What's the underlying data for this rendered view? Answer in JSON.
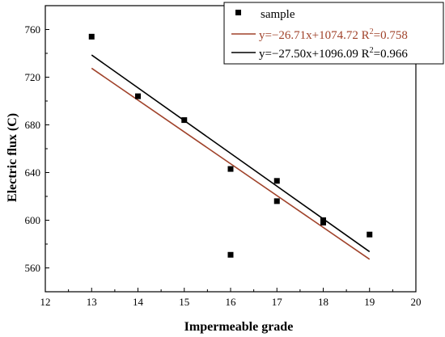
{
  "chart_data": {
    "type": "scatter",
    "title": "",
    "xlabel": "Impermeable grade",
    "ylabel": "Electric flux (C)",
    "xlim": [
      12,
      20
    ],
    "ylim": [
      540,
      780
    ],
    "xticks": [
      "12",
      "13",
      "14",
      "15",
      "16",
      "17",
      "18",
      "19",
      "20"
    ],
    "yticks": [
      "560",
      "600",
      "640",
      "680",
      "720",
      "760"
    ],
    "grid": false,
    "legend_position": "top-right",
    "series": [
      {
        "name": "sample",
        "kind": "scatter",
        "color": "#000000",
        "points": [
          {
            "x": 13,
            "y": 754
          },
          {
            "x": 14,
            "y": 704
          },
          {
            "x": 15,
            "y": 684
          },
          {
            "x": 16,
            "y": 643
          },
          {
            "x": 16,
            "y": 571
          },
          {
            "x": 17,
            "y": 633
          },
          {
            "x": 17,
            "y": 616
          },
          {
            "x": 18,
            "y": 600
          },
          {
            "x": 18,
            "y": 598
          },
          {
            "x": 19,
            "y": 588
          }
        ]
      },
      {
        "name": "y=−26.71x+1074.72 R²=0.758",
        "kind": "line",
        "color": "#a0422a",
        "slope": -26.71,
        "intercept": 1074.72,
        "x_range": [
          13,
          19
        ]
      },
      {
        "name": "y=−27.50x+1096.09 R²=0.966",
        "kind": "line",
        "color": "#000000",
        "slope": -27.5,
        "intercept": 1096.09,
        "x_range": [
          13,
          19
        ]
      }
    ],
    "legend": {
      "sample_label": "sample",
      "fit1_prefix": "y=−26.71x+1074.72 R",
      "fit1_suffix": "=0.758",
      "fit2_prefix": "y=−27.50x+1096.09 R",
      "fit2_suffix": "=0.966",
      "sup": "2"
    }
  }
}
